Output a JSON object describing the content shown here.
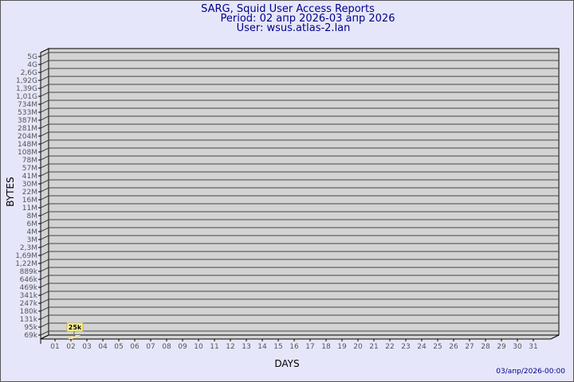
{
  "header": {
    "title": "SARG, Squid User Access Reports",
    "period": "Period: 02 апр 2026-03 апр 2026",
    "user": "User: wsus.atlas-2.lan"
  },
  "footer": {
    "timestamp": "03/апр/2026-00:00"
  },
  "chart_data": {
    "type": "bar",
    "xlabel": "DAYS",
    "ylabel": "BYTES",
    "y_ticks": [
      "5G",
      "4G",
      "2,6G",
      "1,92G",
      "1,39G",
      "1,01G",
      "734M",
      "533M",
      "387M",
      "281M",
      "204M",
      "148M",
      "108M",
      "78M",
      "57M",
      "41M",
      "30M",
      "22M",
      "16M",
      "11M",
      "8M",
      "6M",
      "4M",
      "3M",
      "2,3M",
      "1,69M",
      "1,22M",
      "889k",
      "646k",
      "469k",
      "341k",
      "247k",
      "180k",
      "131k",
      "95k",
      "69k"
    ],
    "categories": [
      "01",
      "02",
      "03",
      "04",
      "05",
      "06",
      "07",
      "08",
      "09",
      "10",
      "11",
      "12",
      "13",
      "14",
      "15",
      "16",
      "17",
      "18",
      "19",
      "20",
      "21",
      "22",
      "23",
      "24",
      "25",
      "26",
      "27",
      "28",
      "29",
      "30",
      "31"
    ],
    "values": [
      null,
      "25k",
      null,
      null,
      null,
      null,
      null,
      null,
      null,
      null,
      null,
      null,
      null,
      null,
      null,
      null,
      null,
      null,
      null,
      null,
      null,
      null,
      null,
      null,
      null,
      null,
      null,
      null,
      null,
      null,
      null
    ],
    "grid": true,
    "colors": {
      "background": "#e6e6fa",
      "plot": "#d3d3d3",
      "bar": "#ffe88c",
      "label_box": "#ffff99",
      "title": "#00008b"
    }
  }
}
